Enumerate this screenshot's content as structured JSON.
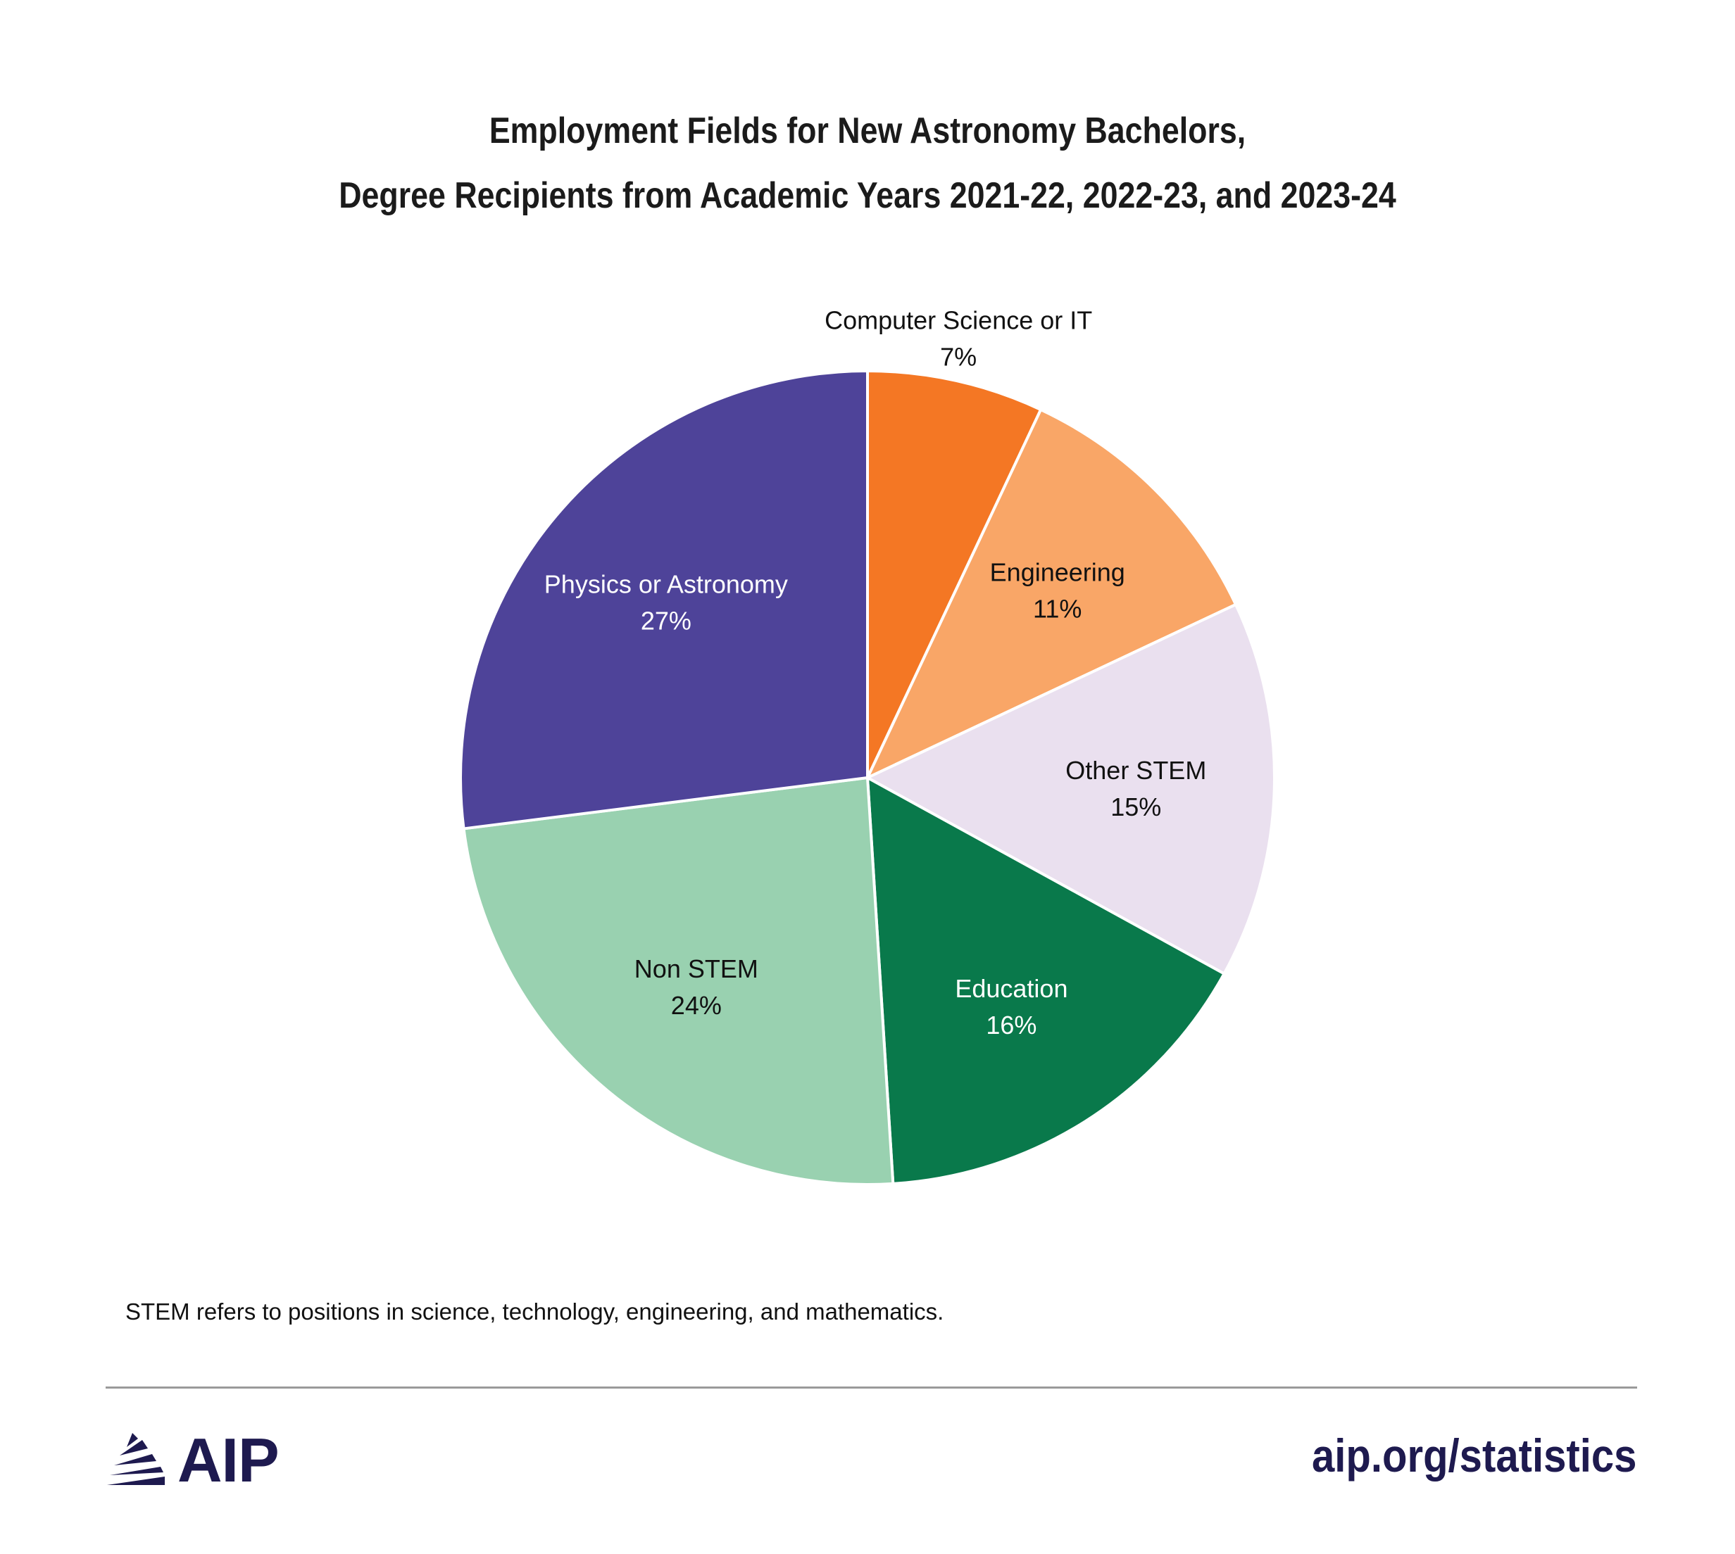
{
  "chart_data": {
    "type": "pie",
    "title": "Employment Fields for New Astronomy Bachelors,",
    "subtitle": "Degree Recipients from Academic Years 2021-22, 2022-23, and 2023-24",
    "slices": [
      {
        "label": "Computer Science or IT",
        "value": 7,
        "value_label": "7%",
        "color": "#f47724",
        "text_color": "#111111"
      },
      {
        "label": "Engineering",
        "value": 11,
        "value_label": "11%",
        "color": "#f9a667",
        "text_color": "#111111"
      },
      {
        "label": "Other STEM",
        "value": 15,
        "value_label": "15%",
        "color": "#eae0ef",
        "text_color": "#111111"
      },
      {
        "label": "Education",
        "value": 16,
        "value_label": "16%",
        "color": "#09794b",
        "text_color": "#ffffff"
      },
      {
        "label": "Non STEM",
        "value": 24,
        "value_label": "24%",
        "color": "#99d1b0",
        "text_color": "#111111"
      },
      {
        "label": "Physics or Astronomy",
        "value": 27,
        "value_label": "27%",
        "color": "#4e4399",
        "text_color": "#ffffff"
      }
    ],
    "start_angle": "12 o'clock",
    "direction": "clockwise",
    "legend": "none",
    "labels": "on slices"
  },
  "footnote": "STEM refers to positions in science, technology, engineering, and mathematics.",
  "brand": {
    "name": "AIP",
    "icon": "aip-logo-icon",
    "color": "#1e1a4f"
  },
  "url": "aip.org/statistics"
}
